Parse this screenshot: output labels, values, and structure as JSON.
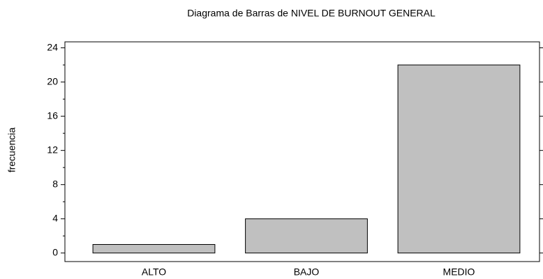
{
  "chart_data": {
    "type": "bar",
    "title": "Diagrama de Barras de NIVEL DE BURNOUT GENERAL",
    "y_label": "frecuencia",
    "categories": [
      "ALTO",
      "BAJO",
      "MEDIO"
    ],
    "values": [
      1,
      4,
      22
    ],
    "color": "#c0c0c0",
    "ylim": [
      -1,
      24.7
    ],
    "yticks": [
      0,
      4,
      8,
      12,
      16,
      20,
      24
    ]
  }
}
